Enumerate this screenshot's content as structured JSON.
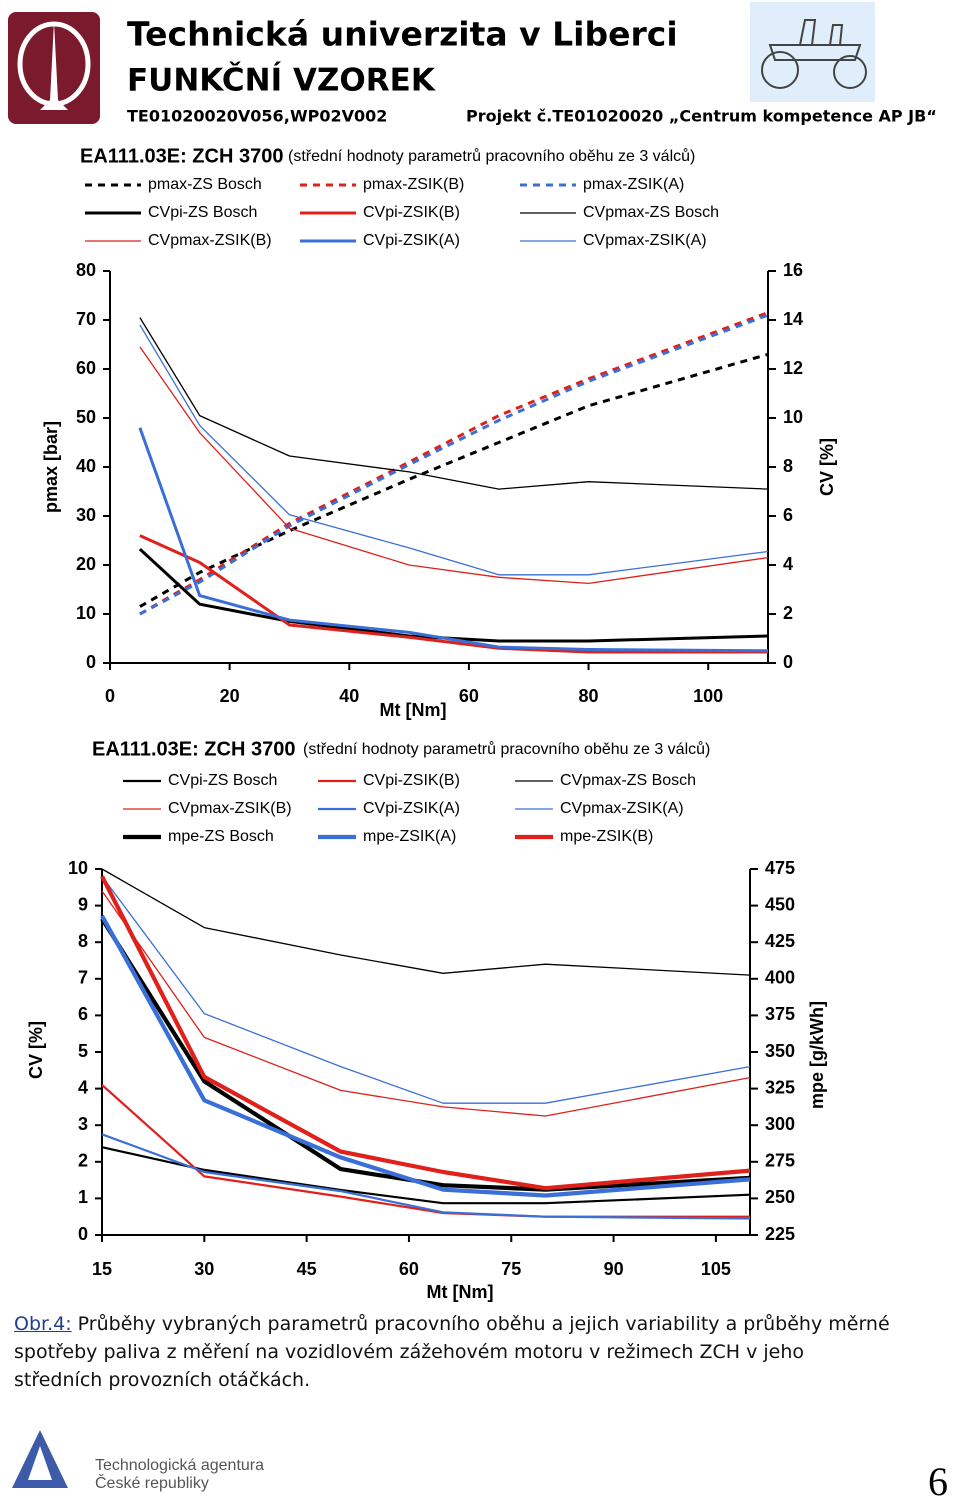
{
  "header": {
    "university": "Technická univerzita v Liberci",
    "subtitle": "FUNKČNÍ VZOREK",
    "code": "TE01020020V056,",
    "wp": "WP02V002",
    "project": "Projekt č.TE01020020 „Centrum kompetence AP JB“"
  },
  "chart_data": [
    {
      "type": "line",
      "title": "EA111.03E: ZCH 3700",
      "subtitle": "(střední hodnoty parametrů pracovního oběhu ze 3 válců)",
      "x_label": "Mt [Nm]",
      "y_label": "pmax [bar]",
      "y2_label": "CV [%]",
      "x": [
        5,
        15,
        30,
        50,
        65,
        80,
        110
      ],
      "xlim": [
        0,
        110
      ],
      "xticks": [
        0,
        20,
        40,
        60,
        80,
        100
      ],
      "ylim": [
        0,
        80
      ],
      "yticks": [
        0,
        10,
        20,
        30,
        40,
        50,
        60,
        70,
        80
      ],
      "y2lim": [
        0,
        16
      ],
      "y2ticks": [
        0,
        2,
        4,
        6,
        8,
        10,
        12,
        14,
        16
      ],
      "grid": false,
      "series": [
        {
          "name": "pmax-ZS Bosch",
          "color": "#000000",
          "line_style": "dashed",
          "values": [
            11.5,
            18.5,
            27,
            37.5,
            45,
            52.5,
            63
          ]
        },
        {
          "name": "pmax-ZSIK(B)",
          "color": "#e0201b",
          "line_style": "dashed",
          "values": [
            10,
            17,
            28.5,
            41,
            50.5,
            58,
            71.5
          ]
        },
        {
          "name": "pmax-ZSIK(A)",
          "color": "#3a6fd8",
          "line_style": "dashed",
          "values": [
            10,
            16.5,
            28,
            40.5,
            49.5,
            57.5,
            71
          ]
        },
        {
          "name": "CVpi-ZS Bosch",
          "color": "#000000",
          "line_style": "thick",
          "axis": "y2",
          "values": [
            4.65,
            2.4,
            1.7,
            1.1,
            0.9,
            0.9,
            1.1
          ]
        },
        {
          "name": "CVpi-ZSIK(B)",
          "color": "#e0201b",
          "line_style": "thick",
          "axis": "y2",
          "values": [
            5.2,
            4.1,
            1.55,
            1.05,
            0.6,
            0.45,
            0.45
          ]
        },
        {
          "name": "CVpmax-ZS Bosch",
          "color": "#000000",
          "line_style": "thin",
          "axis": "y2",
          "values": [
            14.1,
            10.1,
            8.45,
            7.8,
            7.1,
            7.4,
            7.1
          ]
        },
        {
          "name": "CVpmax-ZSIK(B)",
          "color": "#e0201b",
          "line_style": "thin",
          "axis": "y2",
          "values": [
            12.9,
            9.4,
            5.5,
            4,
            3.5,
            3.25,
            4.3
          ]
        },
        {
          "name": "CVpi-ZSIK(A)",
          "color": "#3a6fd8",
          "line_style": "thick",
          "axis": "y2",
          "values": [
            9.6,
            2.75,
            1.75,
            1.25,
            0.65,
            0.55,
            0.5
          ]
        },
        {
          "name": "CVpmax-ZSIK(A)",
          "color": "#3a6fd8",
          "line_style": "thin",
          "axis": "y2",
          "values": [
            13.8,
            9.7,
            6.05,
            4.7,
            3.6,
            3.6,
            4.55
          ]
        }
      ]
    },
    {
      "type": "line",
      "title": "EA111.03E: ZCH 3700",
      "subtitle": "(střední hodnoty parametrů pracovního oběhu ze 3 válců)",
      "x_label": "Mt [Nm]",
      "y_label": "CV [%]",
      "y2_label": "mpe [g/kWh]",
      "x": [
        15,
        30,
        50,
        65,
        80,
        110
      ],
      "xlim": [
        15,
        110
      ],
      "xticks": [
        15,
        30,
        45,
        60,
        75,
        90,
        105
      ],
      "ylim": [
        0,
        10
      ],
      "yticks": [
        0,
        1,
        2,
        3,
        4,
        5,
        6,
        7,
        8,
        9,
        10
      ],
      "y2lim": [
        225,
        475
      ],
      "y2ticks": [
        225,
        250,
        275,
        300,
        325,
        350,
        375,
        400,
        425,
        450,
        475
      ],
      "grid": false,
      "series": [
        {
          "name": "CVpi-ZS Bosch",
          "color": "#000000",
          "line_style": "medium",
          "values": [
            2.4,
            1.78,
            1.23,
            0.87,
            0.87,
            1.1
          ]
        },
        {
          "name": "CVpi-ZSIK(B)",
          "color": "#e0201b",
          "line_style": "medium",
          "values": [
            4.1,
            1.6,
            1.05,
            0.6,
            0.5,
            0.5
          ]
        },
        {
          "name": "CVpmax-ZS Bosch",
          "color": "#000000",
          "line_style": "thin",
          "values": [
            10,
            8.4,
            7.65,
            7.15,
            7.4,
            7.1
          ]
        },
        {
          "name": "CVpmax-ZSIK(B)",
          "color": "#e0201b",
          "line_style": "thin",
          "values": [
            9.4,
            5.4,
            3.95,
            3.5,
            3.25,
            4.3
          ]
        },
        {
          "name": "CVpi-ZSIK(A)",
          "color": "#3a6fd8",
          "line_style": "medium",
          "values": [
            2.75,
            1.72,
            1.2,
            0.62,
            0.5,
            0.45
          ]
        },
        {
          "name": "CVpmax-ZSIK(A)",
          "color": "#3a6fd8",
          "line_style": "thin",
          "values": [
            9.8,
            6.05,
            4.6,
            3.6,
            3.6,
            4.6
          ]
        },
        {
          "name": "mpe-ZS Bosch",
          "color": "#000000",
          "line_style": "heavy",
          "axis": "y2",
          "values": [
            441,
            330,
            270,
            259,
            256,
            264
          ]
        },
        {
          "name": "mpe-ZSIK(A)",
          "color": "#3a6fd8",
          "line_style": "heavy",
          "axis": "y2",
          "values": [
            443,
            317,
            278,
            256,
            252,
            263
          ]
        },
        {
          "name": "mpe-ZSIK(B)",
          "color": "#e0201b",
          "line_style": "heavy",
          "axis": "y2",
          "values": [
            470,
            333,
            282,
            268,
            257,
            269
          ]
        }
      ]
    }
  ],
  "caption": {
    "label": "Obr.4:",
    "text": "Průběhy vybraných parametrů pracovního oběhu a jejich variability a průběhy měrné spotřeby paliva z měření na vozidlovém zážehovém motoru v režimech ZCH v jeho středních provozních otáčkách."
  },
  "footer": {
    "agency_line1": "Technologická agentura",
    "agency_line2": "České republiky",
    "page_number": "6"
  }
}
